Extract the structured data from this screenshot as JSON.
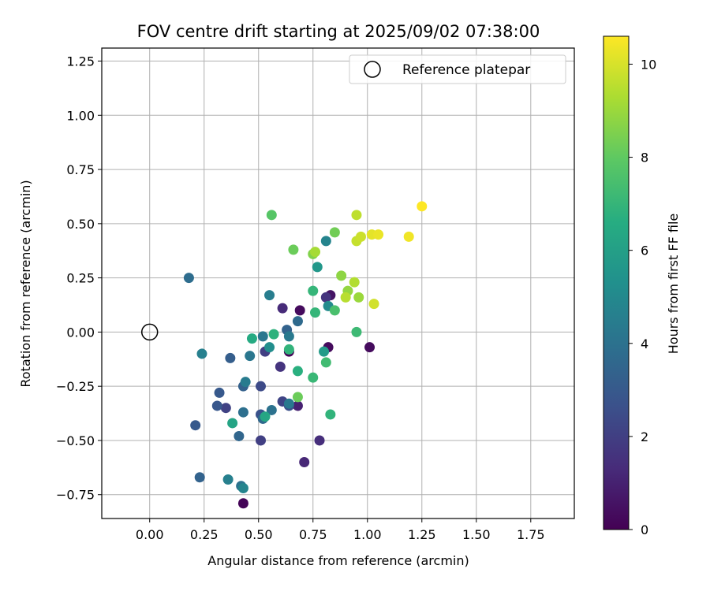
{
  "chart_data": {
    "type": "scatter",
    "title": "FOV centre drift starting at 2025/09/02 07:38:00",
    "xlabel": "Angular distance from reference (arcmin)",
    "ylabel": "Rotation from reference (arcmin)",
    "xlim": [
      -0.22,
      1.95
    ],
    "ylim": [
      -0.86,
      1.31
    ],
    "xticks": [
      0.0,
      0.25,
      0.5,
      0.75,
      1.0,
      1.25,
      1.5,
      1.75
    ],
    "xtick_labels": [
      "0.00",
      "0.25",
      "0.50",
      "0.75",
      "1.00",
      "1.25",
      "1.50",
      "1.75"
    ],
    "yticks": [
      -0.75,
      -0.5,
      -0.25,
      0.0,
      0.25,
      0.5,
      0.75,
      1.0,
      1.25
    ],
    "ytick_labels": [
      "−0.75",
      "−0.50",
      "−0.25",
      "0.00",
      "0.25",
      "0.50",
      "0.75",
      "1.00",
      "1.25"
    ],
    "grid": true,
    "legend": {
      "placement": "top-right",
      "entries": [
        "Reference platepar"
      ]
    },
    "reference_point": {
      "x": 0.0,
      "y": 0.0
    },
    "colorbar": {
      "label": "Hours from first FF file",
      "colormap": "viridis",
      "range": [
        0,
        10.6
      ],
      "ticks": [
        0,
        2,
        4,
        6,
        8,
        10
      ],
      "tick_labels": [
        "0",
        "2",
        "4",
        "6",
        "8",
        "10"
      ]
    },
    "points": [
      {
        "x": 0.43,
        "y": -0.79,
        "c": 0.1
      },
      {
        "x": 0.64,
        "y": -0.09,
        "c": 0.1
      },
      {
        "x": 0.69,
        "y": 0.1,
        "c": 0.3
      },
      {
        "x": 1.01,
        "y": -0.07,
        "c": 0.3
      },
      {
        "x": 0.82,
        "y": -0.07,
        "c": 0.3
      },
      {
        "x": 0.83,
        "y": 0.17,
        "c": 0.6
      },
      {
        "x": 0.68,
        "y": -0.34,
        "c": 1.0
      },
      {
        "x": 0.71,
        "y": -0.6,
        "c": 1.2
      },
      {
        "x": 0.78,
        "y": -0.5,
        "c": 1.4
      },
      {
        "x": 0.61,
        "y": 0.11,
        "c": 1.3
      },
      {
        "x": 0.81,
        "y": 0.16,
        "c": 1.6
      },
      {
        "x": 0.6,
        "y": -0.16,
        "c": 1.6
      },
      {
        "x": 0.53,
        "y": -0.09,
        "c": 2.0
      },
      {
        "x": 0.51,
        "y": -0.5,
        "c": 2.0
      },
      {
        "x": 0.35,
        "y": -0.35,
        "c": 2.1
      },
      {
        "x": 0.61,
        "y": -0.32,
        "c": 2.2
      },
      {
        "x": 0.51,
        "y": -0.25,
        "c": 2.4
      },
      {
        "x": 0.64,
        "y": -0.34,
        "c": 2.6
      },
      {
        "x": 0.51,
        "y": -0.38,
        "c": 2.7
      },
      {
        "x": 0.31,
        "y": -0.34,
        "c": 2.9
      },
      {
        "x": 0.32,
        "y": -0.28,
        "c": 3.0
      },
      {
        "x": 0.21,
        "y": -0.43,
        "c": 3.0
      },
      {
        "x": 0.37,
        "y": -0.12,
        "c": 3.2
      },
      {
        "x": 0.43,
        "y": -0.25,
        "c": 3.3
      },
      {
        "x": 0.23,
        "y": -0.67,
        "c": 3.4
      },
      {
        "x": 0.41,
        "y": -0.48,
        "c": 3.5
      },
      {
        "x": 0.52,
        "y": -0.4,
        "c": 3.6
      },
      {
        "x": 0.63,
        "y": 0.01,
        "c": 3.4
      },
      {
        "x": 0.18,
        "y": 0.25,
        "c": 3.8
      },
      {
        "x": 0.68,
        "y": 0.05,
        "c": 3.7
      },
      {
        "x": 0.43,
        "y": -0.37,
        "c": 3.9
      },
      {
        "x": 0.56,
        "y": -0.36,
        "c": 4.0
      },
      {
        "x": 0.42,
        "y": -0.71,
        "c": 4.0
      },
      {
        "x": 0.46,
        "y": -0.11,
        "c": 4.2
      },
      {
        "x": 0.52,
        "y": -0.02,
        "c": 4.2
      },
      {
        "x": 0.64,
        "y": -0.02,
        "c": 4.3
      },
      {
        "x": 0.64,
        "y": -0.33,
        "c": 4.3
      },
      {
        "x": 0.44,
        "y": -0.23,
        "c": 4.4
      },
      {
        "x": 0.55,
        "y": 0.17,
        "c": 4.5
      },
      {
        "x": 0.36,
        "y": -0.68,
        "c": 4.6
      },
      {
        "x": 0.24,
        "y": -0.1,
        "c": 4.6
      },
      {
        "x": 0.43,
        "y": -0.72,
        "c": 4.8
      },
      {
        "x": 0.81,
        "y": 0.42,
        "c": 4.8
      },
      {
        "x": 0.82,
        "y": 0.12,
        "c": 5.1
      },
      {
        "x": 0.55,
        "y": -0.07,
        "c": 5.2
      },
      {
        "x": 0.77,
        "y": 0.3,
        "c": 5.6
      },
      {
        "x": 0.8,
        "y": -0.09,
        "c": 5.8
      },
      {
        "x": 0.38,
        "y": -0.42,
        "c": 6.2
      },
      {
        "x": 0.53,
        "y": -0.39,
        "c": 6.3
      },
      {
        "x": 0.47,
        "y": -0.03,
        "c": 6.5
      },
      {
        "x": 0.57,
        "y": -0.01,
        "c": 6.8
      },
      {
        "x": 0.68,
        "y": -0.18,
        "c": 6.7
      },
      {
        "x": 0.64,
        "y": -0.08,
        "c": 6.9
      },
      {
        "x": 0.83,
        "y": -0.38,
        "c": 6.9
      },
      {
        "x": 0.75,
        "y": 0.19,
        "c": 7.0
      },
      {
        "x": 0.76,
        "y": 0.09,
        "c": 7.0
      },
      {
        "x": 0.75,
        "y": -0.21,
        "c": 7.1
      },
      {
        "x": 0.95,
        "y": 0.0,
        "c": 7.2
      },
      {
        "x": 0.81,
        "y": -0.14,
        "c": 7.3
      },
      {
        "x": 0.85,
        "y": 0.1,
        "c": 7.5
      },
      {
        "x": 0.56,
        "y": 0.54,
        "c": 7.8
      },
      {
        "x": 0.66,
        "y": 0.38,
        "c": 8.2
      },
      {
        "x": 0.85,
        "y": 0.46,
        "c": 8.3
      },
      {
        "x": 0.68,
        "y": -0.3,
        "c": 8.2
      },
      {
        "x": 0.75,
        "y": 0.36,
        "c": 8.6
      },
      {
        "x": 0.88,
        "y": 0.26,
        "c": 8.8
      },
      {
        "x": 0.91,
        "y": 0.19,
        "c": 8.9
      },
      {
        "x": 0.96,
        "y": 0.16,
        "c": 9.0
      },
      {
        "x": 0.76,
        "y": 0.37,
        "c": 9.2
      },
      {
        "x": 0.94,
        "y": 0.23,
        "c": 9.4
      },
      {
        "x": 0.9,
        "y": 0.16,
        "c": 9.5
      },
      {
        "x": 0.95,
        "y": 0.54,
        "c": 9.6
      },
      {
        "x": 0.95,
        "y": 0.42,
        "c": 9.7
      },
      {
        "x": 0.97,
        "y": 0.44,
        "c": 9.8
      },
      {
        "x": 1.03,
        "y": 0.13,
        "c": 9.9
      },
      {
        "x": 1.02,
        "y": 0.45,
        "c": 10.2
      },
      {
        "x": 1.05,
        "y": 0.45,
        "c": 10.3
      },
      {
        "x": 1.19,
        "y": 0.44,
        "c": 10.4
      },
      {
        "x": 1.25,
        "y": 0.58,
        "c": 10.6
      }
    ]
  }
}
